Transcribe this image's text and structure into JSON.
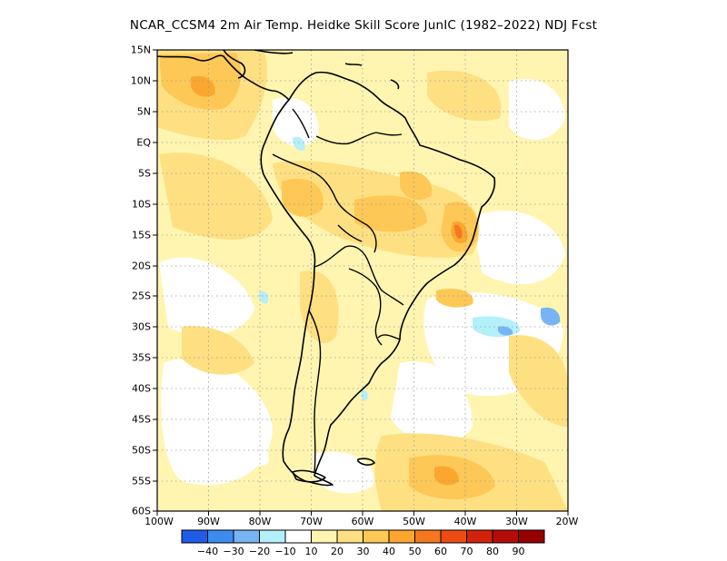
{
  "title": "NCAR_CCSM4   2m Air Temp. Heidke Skill Score JunIC (1982–2022) NDJ Fcst",
  "map": {
    "lat_labels": [
      "15N",
      "10N",
      "5N",
      "EQ",
      "5S",
      "10S",
      "15S",
      "20S",
      "25S",
      "30S",
      "35S",
      "40S",
      "45S",
      "50S",
      "55S",
      "60S"
    ],
    "lon_labels": [
      "100W",
      "90W",
      "80W",
      "70W",
      "60W",
      "50W",
      "40W",
      "30W",
      "20W"
    ],
    "extent": {
      "west": -100,
      "east": -20,
      "north": 15,
      "south": -60
    },
    "gridlines": "dotted"
  },
  "colorbar": {
    "labels": [
      "−40",
      "−30",
      "−20",
      "−10",
      "10",
      "20",
      "30",
      "40",
      "50",
      "60",
      "70",
      "80",
      "90"
    ],
    "colors": [
      "#1e5ee6",
      "#3c8cf0",
      "#78b4f4",
      "#b4f0fa",
      "#ffffff",
      "#fff5b0",
      "#fee082",
      "#fdc855",
      "#fba62e",
      "#f5781e",
      "#ee4b14",
      "#d2230a",
      "#b40d08",
      "#960000"
    ]
  }
}
